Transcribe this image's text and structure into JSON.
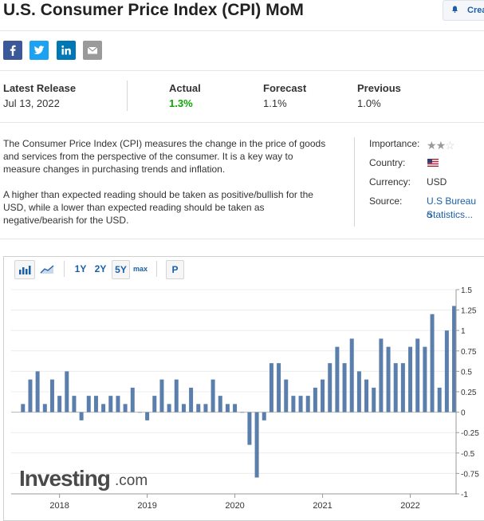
{
  "header": {
    "title": "U.S. Consumer Price Index (CPI) MoM",
    "create_alert_label": "Crea"
  },
  "share": [
    "facebook-icon",
    "twitter-icon",
    "linkedin-icon",
    "email-icon"
  ],
  "release": {
    "latest_label": "Latest Release",
    "latest_date": "Jul 13, 2022",
    "actual_label": "Actual",
    "actual_value": "1.3%",
    "forecast_label": "Forecast",
    "forecast_value": "1.1%",
    "previous_label": "Previous",
    "previous_value": "1.0%",
    "actual_color": "#0ea600"
  },
  "description": {
    "p1": "The Consumer Price Index (CPI) measures the change in the price of goods and services from the perspective of the consumer. It is a key way to measure changes in purchasing trends and inflation.",
    "p2": "A higher than expected reading should be taken as positive/bullish for the USD, while a lower than expected reading should be taken as negative/bearish for the USD."
  },
  "info": {
    "importance_label": "Importance:",
    "importance_stars": 2,
    "importance_max": 3,
    "country_label": "Country:",
    "country_icon": "us-flag-icon",
    "currency_label": "Currency:",
    "currency_value": "USD",
    "source_label": "Source:",
    "source_line1": "U.S Bureau o",
    "source_line2": "Statistics..."
  },
  "toolbar": {
    "bar_icon": "bar-chart-icon",
    "line_icon": "line-chart-icon",
    "range_1y": "1Y",
    "range_2y": "2Y",
    "range_5y": "5Y",
    "range_max": "max",
    "p_button": "P",
    "selected_range": "5Y"
  },
  "watermark": {
    "brand": "Investing",
    "suffix": ".com"
  },
  "chart_data": {
    "type": "bar",
    "bar_color": "#5b7fad",
    "ylim": [
      -1,
      1.5
    ],
    "yticks": [
      "1.5",
      "1.25",
      "1",
      "0.75",
      "0.5",
      "0.25",
      "0",
      "-0.25",
      "-0.5",
      "-0.75",
      "-1"
    ],
    "xticks": [
      "2018",
      "2019",
      "2020",
      "2021",
      "2022"
    ],
    "grid": true,
    "series": [
      {
        "values": [
          0.1,
          0.4,
          0.5,
          0.1,
          0.4,
          0.2,
          0.5,
          0.2,
          -0.1,
          0.2,
          0.2,
          0.1,
          0.2,
          0.2,
          0.1,
          0.3,
          0.0,
          -0.1,
          0.2,
          0.4,
          0.1,
          0.4,
          0.1,
          0.3,
          0.1,
          0.1,
          0.4,
          0.2,
          0.1,
          0.1,
          0.0,
          -0.4,
          -0.8,
          -0.1,
          0.6,
          0.6,
          0.4,
          0.2,
          0.2,
          0.2,
          0.3,
          0.4,
          0.6,
          0.8,
          0.6,
          0.9,
          0.5,
          0.4,
          0.3,
          0.9,
          0.8,
          0.6,
          0.6,
          0.8,
          0.9,
          0.8,
          1.2,
          0.3,
          1.0,
          1.3
        ]
      }
    ]
  }
}
